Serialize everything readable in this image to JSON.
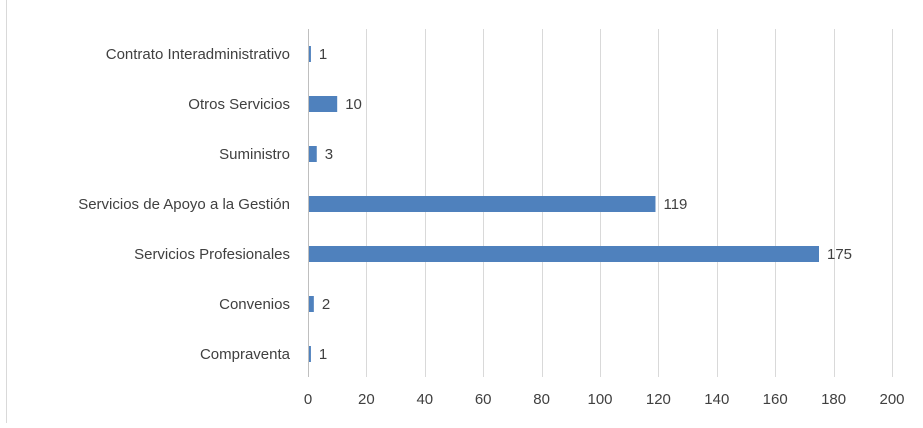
{
  "chart_data": {
    "type": "bar",
    "orientation": "horizontal",
    "title": "",
    "xlabel": "",
    "ylabel": "",
    "categories": [
      "Contrato Interadministrativo",
      "Otros Servicios",
      "Suministro",
      "Servicios de Apoyo a la Gestión",
      "Servicios Profesionales",
      "Convenios",
      "Compraventa"
    ],
    "values": [
      1,
      10,
      3,
      119,
      175,
      2,
      1
    ],
    "xlim": [
      0,
      200
    ],
    "xticks": [
      0,
      20,
      40,
      60,
      80,
      100,
      120,
      140,
      160,
      180,
      200
    ],
    "grid": "vertical",
    "data_labels": true,
    "legend": "none",
    "bar_color": "#4f81bd",
    "grid_color": "#d9d9d9",
    "text_color": "#404040"
  }
}
